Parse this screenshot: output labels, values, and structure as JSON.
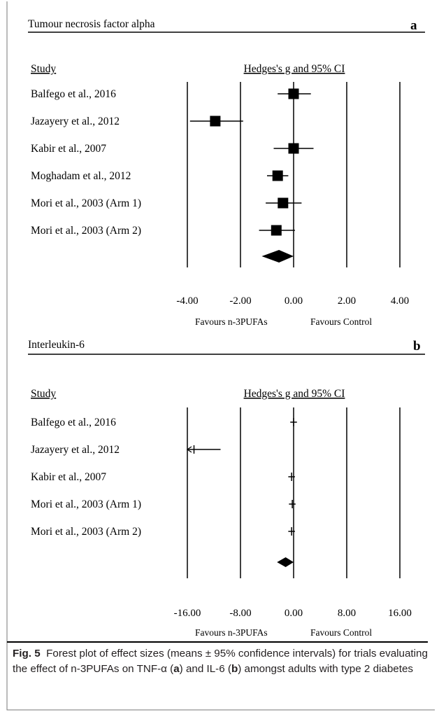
{
  "chart_data": [
    {
      "type": "forest",
      "title": "Tumour necrosis factor alpha",
      "panel_letter": "a",
      "study_header": "Study",
      "effect_header": "Hedges's g and 95% CI",
      "xlim": [
        -4,
        4
      ],
      "tick_labels": [
        "-4.00",
        "-2.00",
        "0.00",
        "2.00",
        "4.00"
      ],
      "tick_values": [
        -4,
        -2,
        0,
        2,
        4
      ],
      "label_left": "Favours n-3PUFAs",
      "label_right": "Favours Control",
      "studies": [
        {
          "name": "Balfego et al., 2016",
          "g": 0.0,
          "lower": -0.6,
          "upper": 0.65
        },
        {
          "name": "Jazayery et al., 2012",
          "g": -2.95,
          "lower": -3.9,
          "upper": -1.9
        },
        {
          "name": "Kabir et al., 2007",
          "g": 0.0,
          "lower": -0.75,
          "upper": 0.75
        },
        {
          "name": "Moghadam et al., 2012",
          "g": -0.6,
          "lower": -1.0,
          "upper": -0.2
        },
        {
          "name": "Mori et al., 2003 (Arm 1)",
          "g": -0.4,
          "lower": -1.05,
          "upper": 0.3
        },
        {
          "name": "Mori et al., 2003 (Arm 2)",
          "g": -0.65,
          "lower": -1.3,
          "upper": 0.05
        }
      ],
      "summary": {
        "g": -0.55,
        "lower": -1.2,
        "upper": 0.0
      }
    },
    {
      "type": "forest",
      "title": "Interleukin-6",
      "panel_letter": "b",
      "study_header": "Study",
      "effect_header": "Hedges's g and 95% CI",
      "xlim": [
        -16,
        16
      ],
      "tick_labels": [
        "-16.00",
        "-8.00",
        "0.00",
        "8.00",
        "16.00"
      ],
      "tick_values": [
        -16,
        -8,
        0,
        8,
        16
      ],
      "label_left": "Favours n-3PUFAs",
      "label_right": "Favours Control",
      "studies": [
        {
          "name": "Balfego et al., 2016",
          "g": 0.0,
          "lower": -0.5,
          "upper": 0.5,
          "arrow_left": false
        },
        {
          "name": "Jazayery et al., 2012",
          "g": -15.0,
          "lower": -16.0,
          "upper": -11.0,
          "arrow_left": true
        },
        {
          "name": "Kabir et al., 2007",
          "g": -0.3,
          "lower": -0.8,
          "upper": 0.2,
          "arrow_left": false
        },
        {
          "name": "Mori et al., 2003 (Arm 1)",
          "g": -0.2,
          "lower": -0.7,
          "upper": 0.3,
          "arrow_left": false
        },
        {
          "name": "Mori et al., 2003 (Arm 2)",
          "g": -0.3,
          "lower": -0.8,
          "upper": 0.2,
          "arrow_left": false
        }
      ],
      "summary": {
        "g": -1.2,
        "lower": -2.5,
        "upper": 0.0
      }
    }
  ],
  "caption": {
    "fig_label": "Fig. 5",
    "text_1": "Forest plot of effect sizes (means ± 95% confidence intervals) for trials evaluating the effect of n-3PUFAs on TNF-α (",
    "letter_a": "a",
    "text_2": ") and IL-6 (",
    "letter_b": "b",
    "text_3": ") amongst adults with type 2 diabetes"
  }
}
